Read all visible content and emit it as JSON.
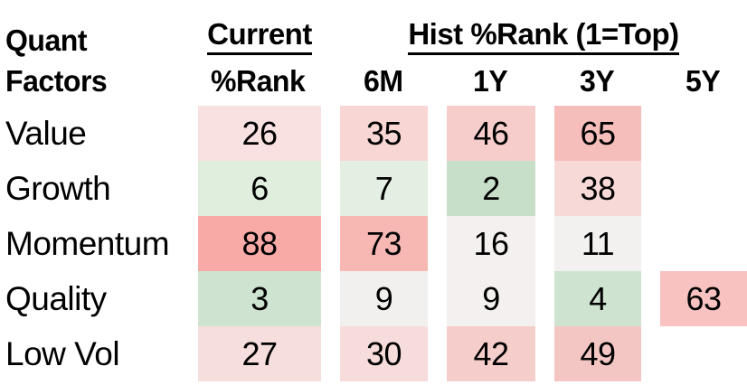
{
  "table": {
    "corner": {
      "line1": "Quant",
      "line2": "Factors"
    },
    "group_headers": {
      "current": "Current",
      "hist": "Hist %Rank (1=Top)"
    },
    "sub_headers": {
      "current": "%Rank",
      "hist": [
        "6M",
        "1Y",
        "3Y",
        "5Y"
      ]
    },
    "rows": [
      {
        "label": "Value",
        "current": {
          "value": "26",
          "bg": "#f8e1e0"
        },
        "hist": [
          {
            "value": "35",
            "bg": "#f7d6d4"
          },
          {
            "value": "46",
            "bg": "#f6cdca"
          },
          {
            "value": "65",
            "bg": "#f5bebb"
          },
          {
            "value": "",
            "bg": ""
          }
        ]
      },
      {
        "label": "Growth",
        "current": {
          "value": "6",
          "bg": "#dfeedd"
        },
        "hist": [
          {
            "value": "7",
            "bg": "#e4efe3"
          },
          {
            "value": "2",
            "bg": "#c7dfc9"
          },
          {
            "value": "38",
            "bg": "#f7dad8"
          },
          {
            "value": "",
            "bg": ""
          }
        ]
      },
      {
        "label": "Momentum",
        "current": {
          "value": "88",
          "bg": "#f8aba6"
        },
        "hist": [
          {
            "value": "73",
            "bg": "#f7b8b4"
          },
          {
            "value": "16",
            "bg": "#f4f0ef"
          },
          {
            "value": "11",
            "bg": "#f3f1f0"
          },
          {
            "value": "",
            "bg": ""
          }
        ]
      },
      {
        "label": "Quality",
        "current": {
          "value": "3",
          "bg": "#cee4d0"
        },
        "hist": [
          {
            "value": "9",
            "bg": "#f2f0ef"
          },
          {
            "value": "9",
            "bg": "#f3f0ef"
          },
          {
            "value": "4",
            "bg": "#cee4d0"
          },
          {
            "value": "63",
            "bg": "#f7c2bf"
          }
        ]
      },
      {
        "label": "Low Vol",
        "current": {
          "value": "27",
          "bg": "#f6dedc"
        },
        "hist": [
          {
            "value": "30",
            "bg": "#f6dcda"
          },
          {
            "value": "42",
            "bg": "#f5cecb"
          },
          {
            "value": "49",
            "bg": "#f4c6c3"
          },
          {
            "value": "",
            "bg": ""
          }
        ]
      }
    ],
    "legend_note": "1=Top",
    "colors": {
      "scale_low_green": "#c7dfc9",
      "scale_mid_neutral": "#f3f1f0",
      "scale_high_red": "#f8aba6",
      "text": "#000000",
      "background": "#ffffff"
    }
  },
  "chart_data": {
    "type": "heatmap",
    "title": "Quant Factors",
    "column_group_labels": [
      "Current",
      "Hist %Rank (1=Top)"
    ],
    "columns": [
      "%Rank",
      "6M",
      "1Y",
      "3Y",
      "5Y"
    ],
    "row_labels": [
      "Value",
      "Growth",
      "Momentum",
      "Quality",
      "Low Vol"
    ],
    "values": [
      [
        26,
        35,
        46,
        65,
        null
      ],
      [
        6,
        7,
        2,
        38,
        null
      ],
      [
        88,
        73,
        16,
        11,
        null
      ],
      [
        3,
        9,
        9,
        4,
        63
      ],
      [
        27,
        30,
        42,
        49,
        null
      ]
    ],
    "value_range": [
      1,
      100
    ],
    "color_scale": "green at low ranks (1=Top), near-white mid, red at high ranks",
    "notes": "5Y column populated only for Quality (63); other 5Y cells blank"
  }
}
